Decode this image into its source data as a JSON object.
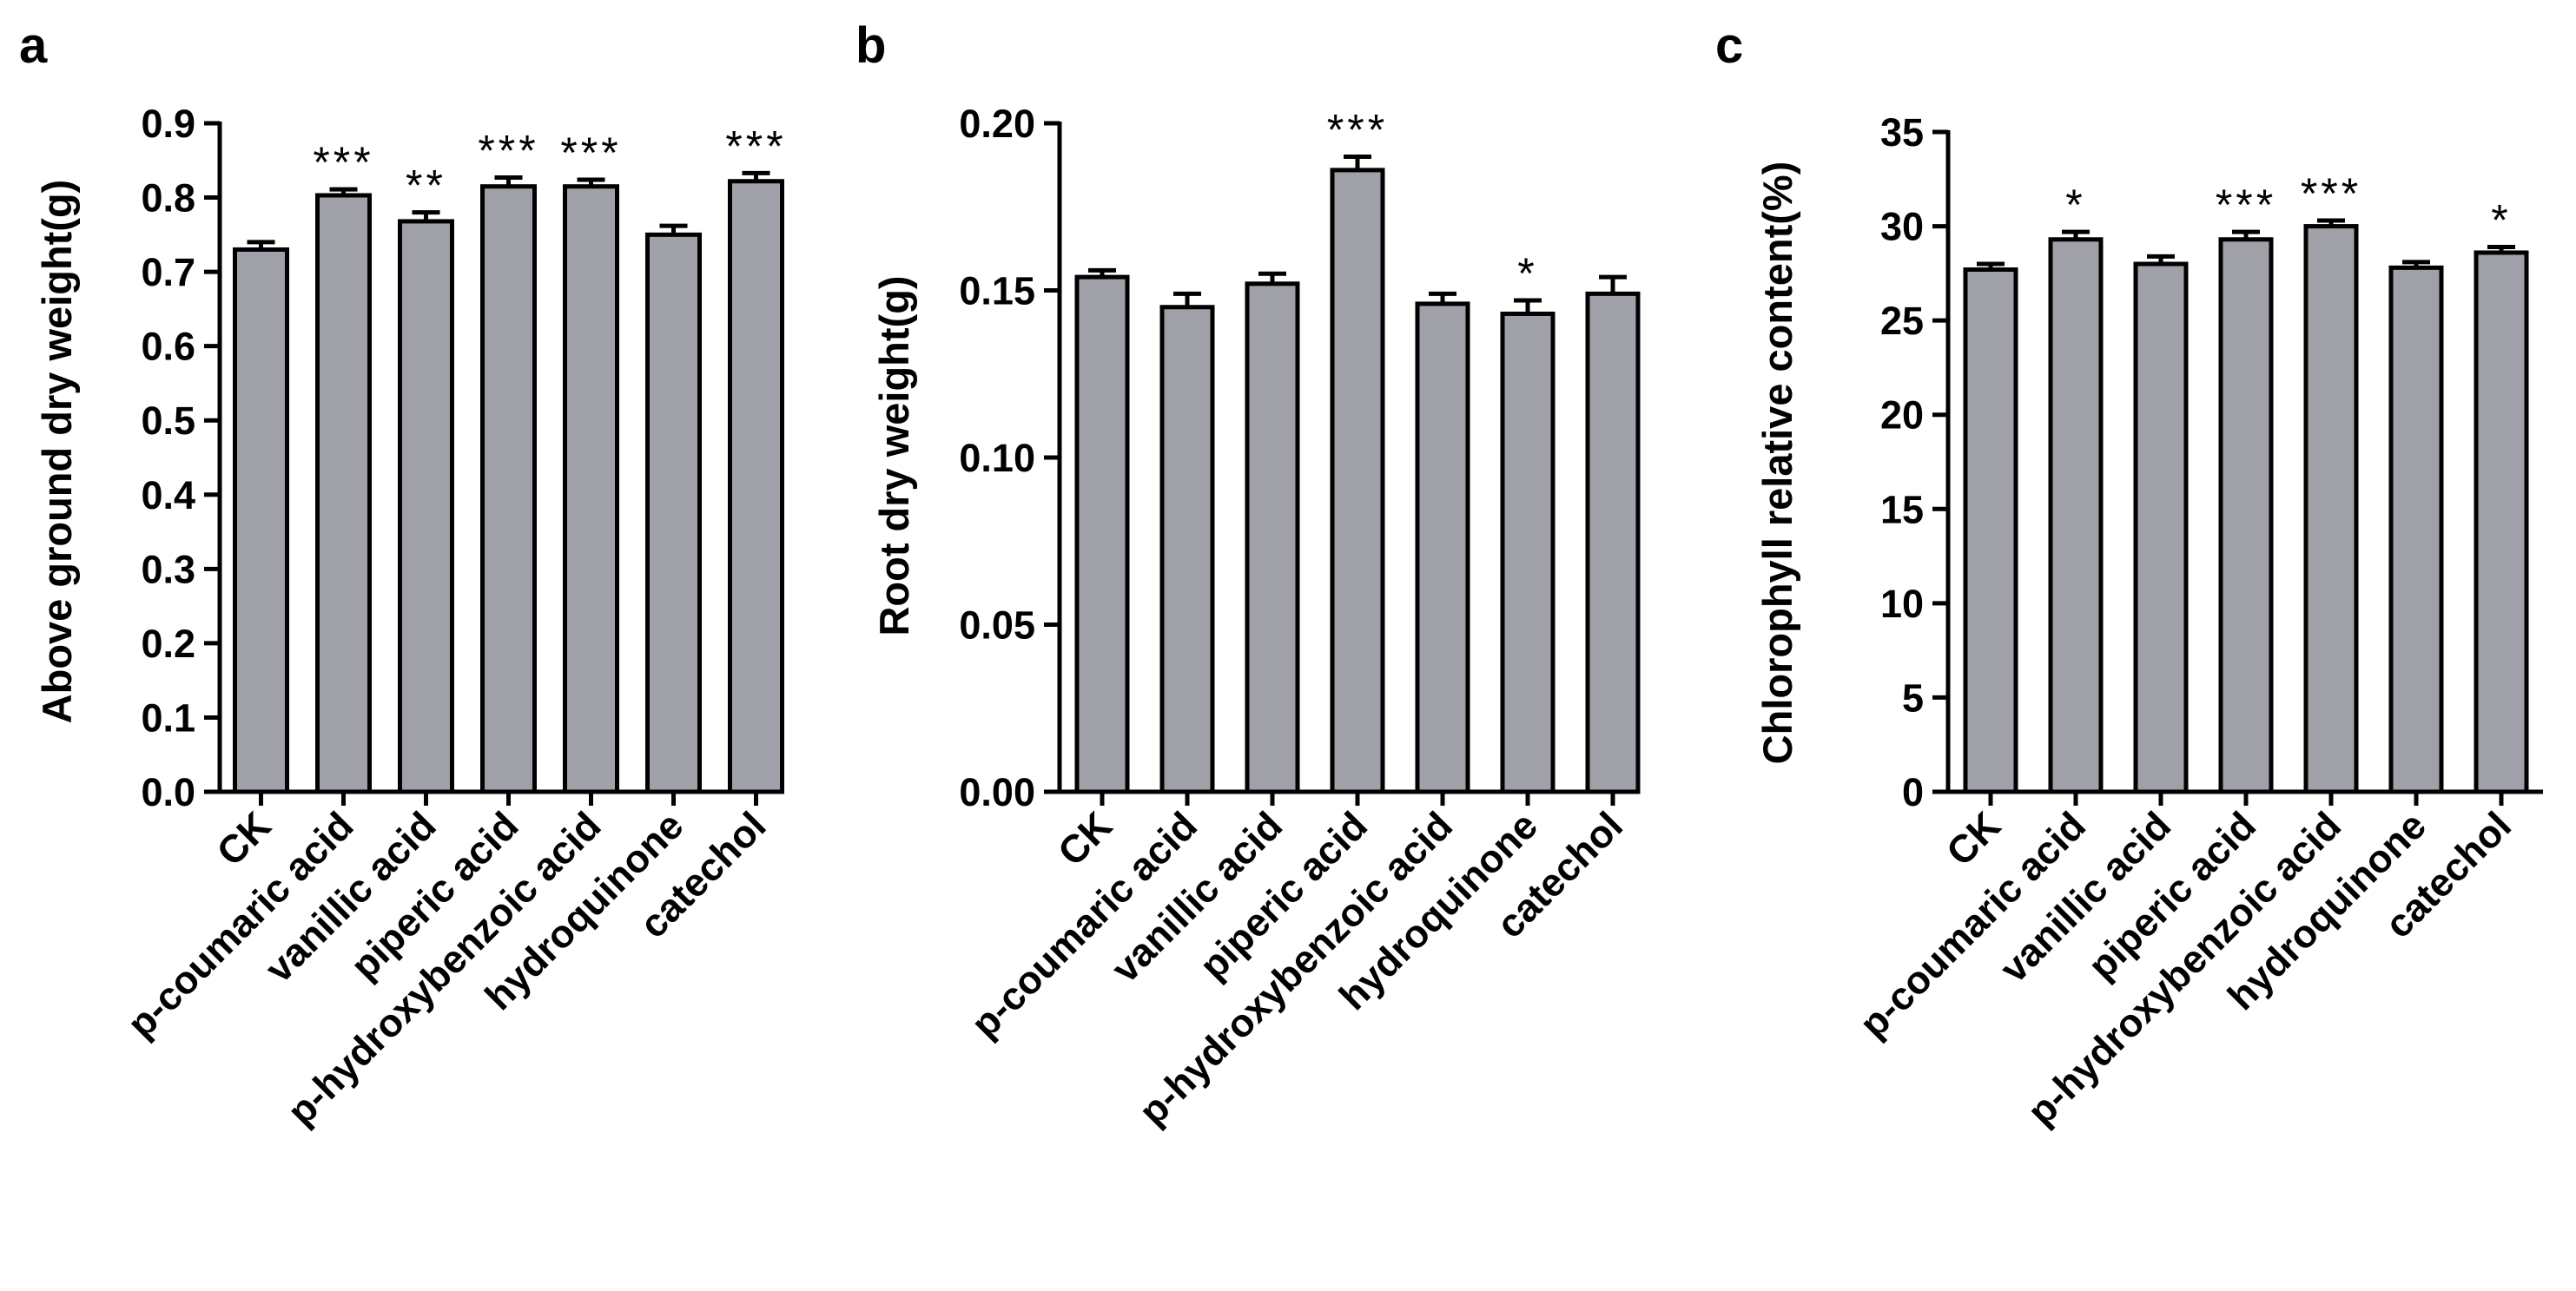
{
  "bar_color": "#a0a0a8",
  "axis_color": "#000000",
  "chart_data": [
    {
      "panel": "a",
      "type": "bar",
      "title": "",
      "xlabel": "",
      "ylabel": "Above ground dry weight(g)",
      "ylim": [
        0,
        0.9
      ],
      "yticks": [
        "0.0",
        "0.1",
        "0.2",
        "0.3",
        "0.4",
        "0.5",
        "0.6",
        "0.7",
        "0.8",
        "0.9"
      ],
      "categories": [
        "CK",
        "p-coumaric acid",
        "vanillic acid",
        "piperic acid",
        "p-hydroxybenzoic acid",
        "hydroquinone",
        "catechol"
      ],
      "values": [
        0.73,
        0.803,
        0.768,
        0.815,
        0.815,
        0.75,
        0.822
      ],
      "errors": [
        0.01,
        0.008,
        0.012,
        0.012,
        0.009,
        0.012,
        0.011
      ],
      "significance": [
        "",
        "***",
        "**",
        "***",
        "***",
        "",
        "***"
      ]
    },
    {
      "panel": "b",
      "type": "bar",
      "title": "",
      "xlabel": "",
      "ylabel": "Root dry weight(g)",
      "ylim": [
        0,
        0.2
      ],
      "yticks": [
        "0.00",
        "0.05",
        "0.10",
        "0.15",
        "0.20"
      ],
      "categories": [
        "CK",
        "p-coumaric acid",
        "vanillic acid",
        "piperic acid",
        "p-hydroxybenzoic acid",
        "hydroquinone",
        "catechol"
      ],
      "values": [
        0.154,
        0.145,
        0.152,
        0.186,
        0.146,
        0.143,
        0.149
      ],
      "errors": [
        0.002,
        0.004,
        0.003,
        0.004,
        0.003,
        0.004,
        0.005
      ],
      "significance": [
        "",
        "",
        "",
        "***",
        "",
        "*",
        ""
      ]
    },
    {
      "panel": "c",
      "type": "bar",
      "title": "",
      "xlabel": "",
      "ylabel": "Chlorophyll relative content(%)",
      "ylim": [
        0,
        35
      ],
      "yticks": [
        "0",
        "5",
        "10",
        "15",
        "20",
        "25",
        "30",
        "35"
      ],
      "categories": [
        "CK",
        "p-coumaric acid",
        "vanillic acid",
        "piperic acid",
        "p-hydroxybenzoic acid",
        "hydroquinone",
        "catechol"
      ],
      "values": [
        27.7,
        29.3,
        28.0,
        29.3,
        30.0,
        27.8,
        28.6
      ],
      "errors": [
        0.3,
        0.4,
        0.4,
        0.4,
        0.3,
        0.3,
        0.3
      ],
      "significance": [
        "",
        "*",
        "",
        "***",
        "***",
        "",
        "*"
      ]
    }
  ]
}
